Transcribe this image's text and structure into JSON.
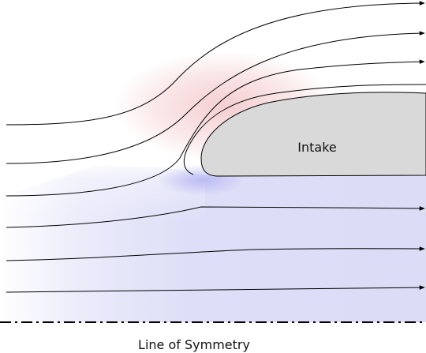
{
  "labels": {
    "intake": "Intake",
    "axis": "Line of Symmetry"
  },
  "colors": {
    "background": "#ffffff",
    "stagnation_tint": "#f4c9cc",
    "acceleration_tint": "#c9c9f4",
    "intake_fill": "#d9d9d9",
    "intake_stroke": "#000000",
    "streamline": "#000000",
    "symmetry_line": "#000000"
  },
  "streamline_count": 8,
  "symmetry_line_style": "dash-dot"
}
